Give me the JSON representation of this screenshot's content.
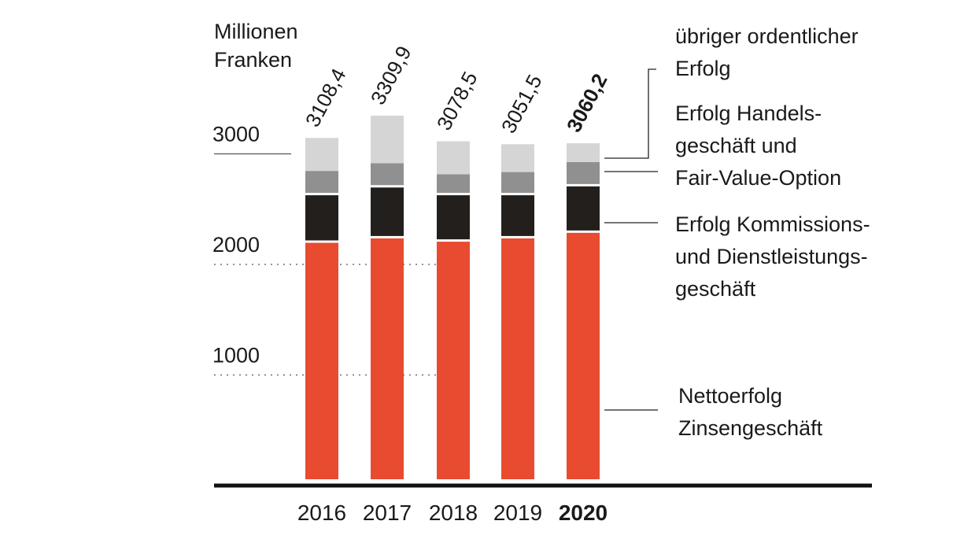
{
  "chart_data": {
    "type": "bar",
    "stacked": true,
    "unit_line1": "Millionen",
    "unit_line2": "Franken",
    "categories": [
      "2016",
      "2017",
      "2018",
      "2019",
      "2020"
    ],
    "highlight_category": "2020",
    "totals": [
      3108.4,
      3309.9,
      3078.5,
      3051.5,
      3060.2
    ],
    "total_labels": [
      "3108,4",
      "3309,9",
      "3078,5",
      "3051,5",
      "3060,2"
    ],
    "series": [
      {
        "name": "Nettoerfolg Zinsengeschäft",
        "color": "#e94b30",
        "values": [
          2160,
          2200,
          2170,
          2200,
          2250
        ]
      },
      {
        "name": "Erfolg Kommissions- und Dienstleistungsgeschäft",
        "color": "#231f1c",
        "values": [
          430,
          460,
          420,
          390,
          420
        ]
      },
      {
        "name": "Erfolg Handelsgeschäft und Fair-Value-Option",
        "color": "#909090",
        "values": [
          220,
          220,
          190,
          210,
          220
        ]
      },
      {
        "name": "übriger ordentlicher Erfolg",
        "color": "#d5d5d5",
        "values": [
          298.4,
          429.9,
          298.5,
          251.5,
          170.2
        ]
      }
    ],
    "yticks": [
      1000,
      2000,
      3000
    ],
    "ytick_labels": [
      "1000",
      "2000",
      "3000"
    ],
    "ylim": [
      0,
      3400
    ]
  },
  "legend": {
    "other_1": "übriger ordentlicher",
    "other_2": "Erfolg",
    "trading_1": "Erfolg Handels-",
    "trading_2": "geschäft und",
    "trading_3": "Fair-Value-Option",
    "commission_1": "Erfolg Kommissions-",
    "commission_2": "und Dienstleistungs-",
    "commission_3": "geschäft",
    "interest_1": "Nettoerfolg",
    "interest_2": "Zinsengeschäft"
  }
}
